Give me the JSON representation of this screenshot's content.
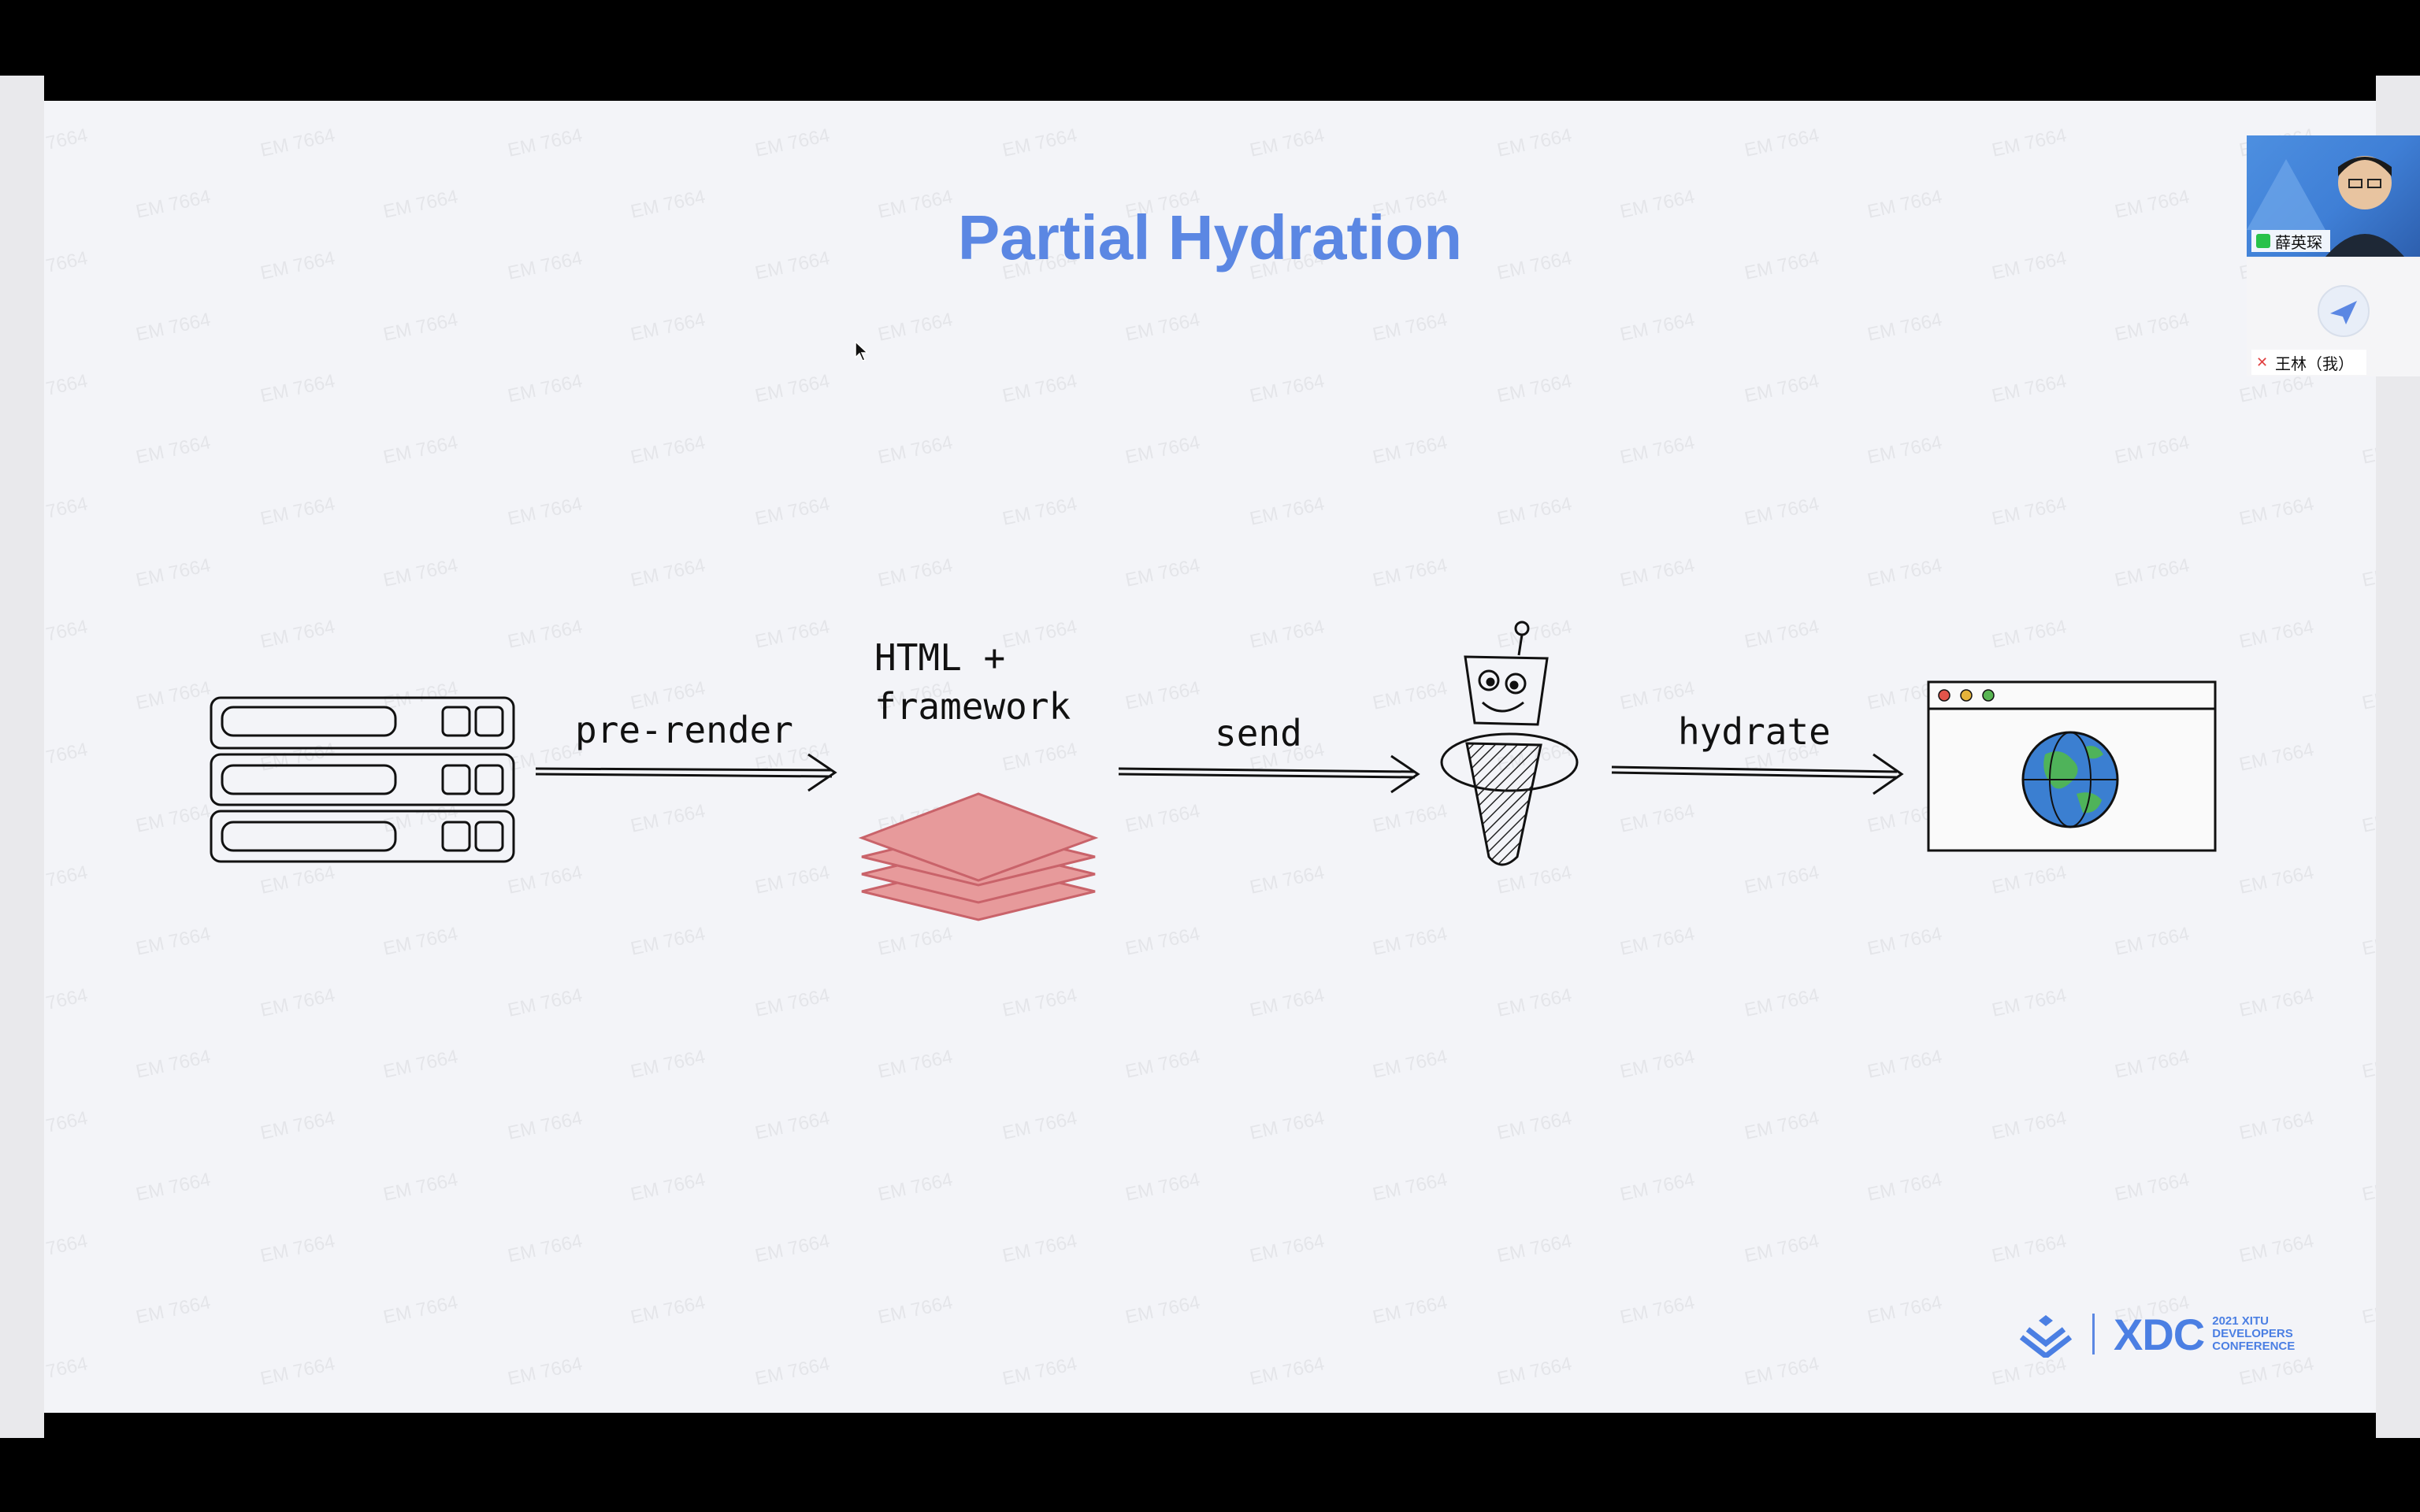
{
  "slide": {
    "title": "Partial Hydration",
    "watermark": "EM 7664"
  },
  "diagram": {
    "labels": {
      "prerender": "pre-render",
      "payload": "HTML +\nframework",
      "send": "send",
      "hydrate": "hydrate"
    },
    "icons": [
      "server-icon",
      "layers-icon",
      "robot-icon",
      "browser-globe-icon"
    ],
    "colors": {
      "layers": "#e79a9b",
      "layers_stroke": "#c9636a",
      "globe_ocean": "#3b7fd1",
      "globe_land": "#4fb35a"
    }
  },
  "logo": {
    "word": "XDC",
    "sub_line1": "2021 XITU",
    "sub_line2": "DEVELOPERS",
    "sub_line3": "CONFERENCE"
  },
  "video": {
    "speaker_name": "薛英琛",
    "self_name": "王林（我）"
  },
  "colors": {
    "title": "#5b87e3",
    "slide_bg": "#f3f4f8",
    "frame": "#000000"
  }
}
